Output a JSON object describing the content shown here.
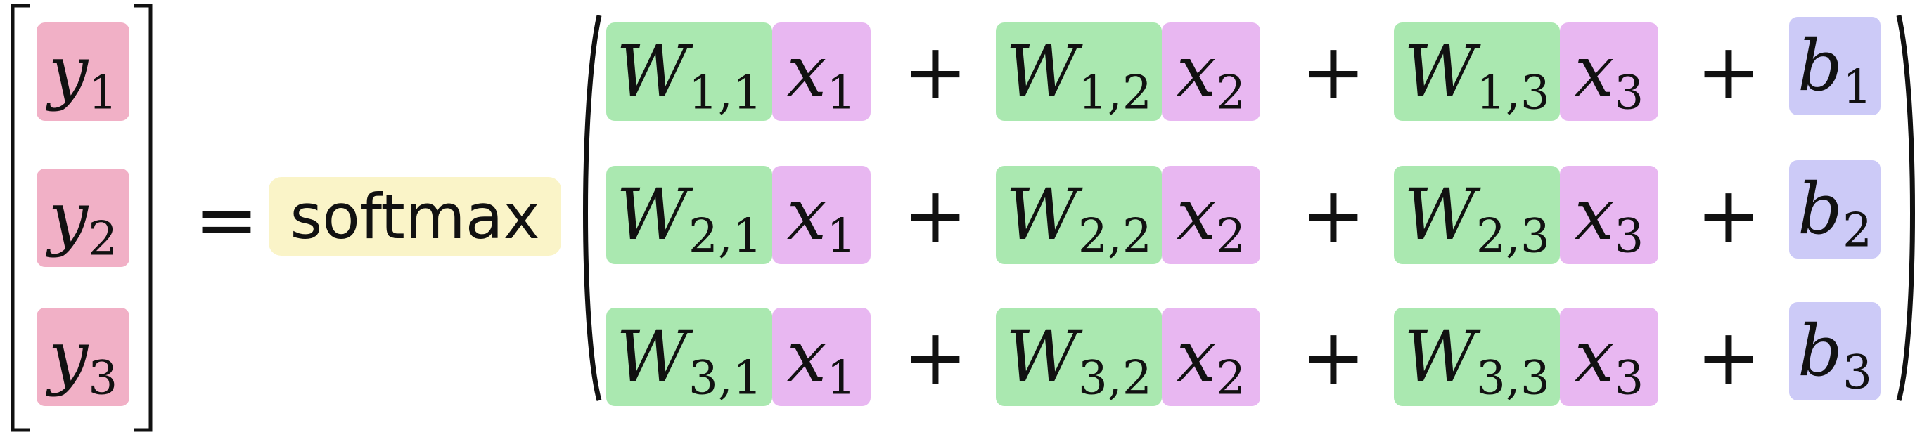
{
  "colors": {
    "y": "#f1b0c6",
    "w": "#aae8b0",
    "x": "#e8b7f1",
    "b": "#cccaf7",
    "softmax": "#faf4c8"
  },
  "lhs": {
    "rows": [
      {
        "base": "y",
        "sub": "1"
      },
      {
        "base": "y",
        "sub": "2"
      },
      {
        "base": "y",
        "sub": "3"
      }
    ]
  },
  "equals": "=",
  "softmax_label": "softmax",
  "plus": "+",
  "rhs": {
    "rows": [
      {
        "terms": [
          {
            "w": {
              "base": "W",
              "sub": "1,1"
            },
            "x": {
              "base": "x",
              "sub": "1"
            }
          },
          {
            "w": {
              "base": "W",
              "sub": "1,2"
            },
            "x": {
              "base": "x",
              "sub": "2"
            }
          },
          {
            "w": {
              "base": "W",
              "sub": "1,3"
            },
            "x": {
              "base": "x",
              "sub": "3"
            }
          }
        ],
        "b": {
          "base": "b",
          "sub": "1"
        }
      },
      {
        "terms": [
          {
            "w": {
              "base": "W",
              "sub": "2,1"
            },
            "x": {
              "base": "x",
              "sub": "1"
            }
          },
          {
            "w": {
              "base": "W",
              "sub": "2,2"
            },
            "x": {
              "base": "x",
              "sub": "2"
            }
          },
          {
            "w": {
              "base": "W",
              "sub": "2,3"
            },
            "x": {
              "base": "x",
              "sub": "3"
            }
          }
        ],
        "b": {
          "base": "b",
          "sub": "2"
        }
      },
      {
        "terms": [
          {
            "w": {
              "base": "W",
              "sub": "3,1"
            },
            "x": {
              "base": "x",
              "sub": "1"
            }
          },
          {
            "w": {
              "base": "W",
              "sub": "3,2"
            },
            "x": {
              "base": "x",
              "sub": "2"
            }
          },
          {
            "w": {
              "base": "W",
              "sub": "3,3"
            },
            "x": {
              "base": "x",
              "sub": "3"
            }
          }
        ],
        "b": {
          "base": "b",
          "sub": "3"
        }
      }
    ]
  }
}
